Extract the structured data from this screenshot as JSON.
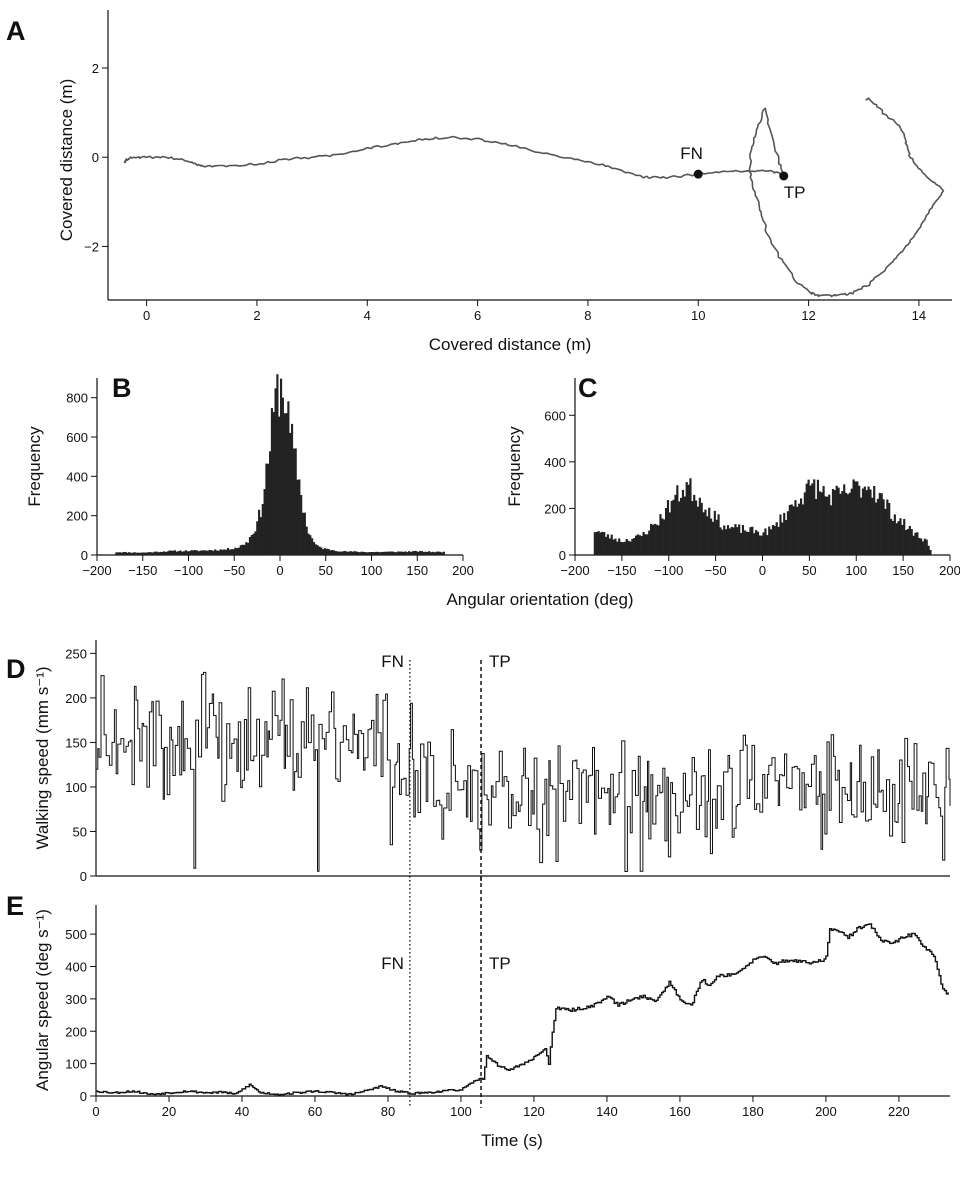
{
  "chart_data": [
    {
      "panel": "A",
      "type": "line",
      "xlabel": "Covered distance (m)",
      "ylabel": "Covered distance (m)",
      "xlim": [
        -0.7,
        14.6
      ],
      "ylim": [
        -3.2,
        3.3
      ],
      "xticks": [
        0,
        2,
        4,
        6,
        8,
        10,
        12,
        14
      ],
      "yticks": [
        -2,
        0,
        2
      ],
      "grid": false,
      "path": {
        "x": [
          -0.4,
          -0.3,
          0.0,
          0.4,
          0.8,
          1.0,
          1.5,
          2.0,
          2.5,
          3.0,
          3.5,
          4.0,
          4.5,
          5.0,
          5.5,
          6.0,
          6.5,
          7.0,
          7.5,
          8.0,
          8.5,
          9.0,
          9.5,
          10.0,
          10.5,
          11.0,
          11.3,
          11.55,
          11.4,
          11.2,
          11.05,
          10.95,
          10.95,
          11.1,
          11.25,
          11.5,
          11.8,
          12.05,
          12.2,
          12.5,
          12.8,
          13.1,
          13.4,
          13.7,
          13.95,
          14.2,
          14.45,
          14.1,
          13.85,
          13.75,
          13.65,
          13.35,
          13.1,
          13.05
        ],
        "y": [
          -0.1,
          0.0,
          0.0,
          0.0,
          -0.1,
          -0.2,
          -0.2,
          -0.15,
          -0.05,
          0.0,
          0.05,
          0.2,
          0.3,
          0.4,
          0.45,
          0.4,
          0.3,
          0.15,
          0.0,
          -0.1,
          -0.25,
          -0.45,
          -0.45,
          -0.38,
          -0.32,
          -0.32,
          -0.3,
          -0.4,
          0.15,
          1.1,
          0.6,
          0.1,
          -0.45,
          -1.1,
          -1.7,
          -2.3,
          -2.8,
          -3.05,
          -3.1,
          -3.1,
          -3.05,
          -2.85,
          -2.5,
          -2.1,
          -1.7,
          -1.2,
          -0.75,
          -0.4,
          0.0,
          0.4,
          0.7,
          1.0,
          1.3,
          1.3
        ]
      },
      "markers": [
        {
          "label": "FN",
          "x": 10.0,
          "y": -0.38
        },
        {
          "label": "TP",
          "x": 11.55,
          "y": -0.42
        }
      ]
    },
    {
      "panel": "B",
      "type": "bar",
      "xlabel": "",
      "ylabel": "Frequency",
      "xlim": [
        -200,
        200
      ],
      "ylim": [
        0,
        900
      ],
      "xticks": [
        -200,
        -150,
        -100,
        -50,
        0,
        50,
        100,
        150,
        200
      ],
      "yticks": [
        0,
        200,
        400,
        600,
        800
      ],
      "profile": {
        "x": [
          -180,
          -150,
          -120,
          -90,
          -60,
          -45,
          -35,
          -25,
          -20,
          -15,
          -10,
          -5,
          0,
          5,
          10,
          15,
          20,
          25,
          30,
          35,
          40,
          50,
          70,
          100,
          150,
          180
        ],
        "y": [
          15,
          12,
          20,
          22,
          28,
          40,
          70,
          160,
          250,
          420,
          600,
          790,
          860,
          820,
          650,
          520,
          400,
          250,
          130,
          80,
          45,
          30,
          18,
          15,
          18,
          15
        ]
      }
    },
    {
      "panel": "C",
      "type": "bar",
      "xlabel": "",
      "ylabel": "Frequency",
      "xlim": [
        -200,
        200
      ],
      "ylim": [
        0,
        760
      ],
      "xticks": [
        -200,
        -150,
        -100,
        -50,
        0,
        50,
        100,
        150,
        200
      ],
      "yticks": [
        0,
        200,
        400,
        600
      ],
      "profile": {
        "x": [
          -180,
          -170,
          -150,
          -130,
          -110,
          -95,
          -80,
          -70,
          -55,
          -40,
          -20,
          0,
          10,
          25,
          40,
          55,
          70,
          85,
          100,
          115,
          125,
          140,
          160,
          175,
          180
        ],
        "y": [
          110,
          90,
          60,
          80,
          150,
          240,
          300,
          250,
          180,
          120,
          110,
          95,
          110,
          180,
          250,
          300,
          250,
          260,
          290,
          300,
          250,
          170,
          100,
          60,
          10
        ]
      }
    },
    {
      "panel": "D",
      "type": "line",
      "xlabel": "",
      "ylabel": "Walking speed (mm s⁻¹)",
      "xlim": [
        0,
        234
      ],
      "ylim": [
        0,
        265
      ],
      "yticks": [
        0,
        50,
        100,
        150,
        200,
        250
      ],
      "annotations": [
        {
          "label": "FN",
          "x": 86
        },
        {
          "label": "TP",
          "x": 105.5
        }
      ],
      "profile": {
        "x": [
          0,
          20,
          40,
          60,
          75,
          86,
          95,
          105,
          120,
          160,
          200,
          234
        ],
        "y": [
          155,
          150,
          150,
          150,
          155,
          130,
          110,
          105,
          100,
          100,
          100,
          100
        ]
      },
      "spread": {
        "x": [
          0,
          86,
          105,
          234
        ],
        "y": [
          85,
          75,
          60,
          70
        ]
      }
    },
    {
      "panel": "E",
      "type": "line",
      "xlabel": "Time (s)",
      "ylabel": "Angular speed (deg s⁻¹)",
      "xlim": [
        0,
        234
      ],
      "ylim": [
        0,
        590
      ],
      "xticks": [
        0,
        20,
        40,
        60,
        80,
        100,
        120,
        140,
        160,
        180,
        200,
        220
      ],
      "yticks": [
        0,
        100,
        200,
        300,
        400,
        500
      ],
      "annotations": [
        {
          "label": "FN",
          "x": 86
        },
        {
          "label": "TP",
          "x": 105.5
        }
      ],
      "series": {
        "x": [
          0,
          5,
          10,
          15,
          20,
          25,
          30,
          35,
          38,
          42,
          45,
          50,
          55,
          60,
          65,
          70,
          75,
          78,
          82,
          86,
          90,
          95,
          100,
          103,
          105,
          106,
          107,
          110,
          113,
          116,
          119,
          121,
          123,
          124,
          125,
          126,
          130,
          135,
          138,
          140,
          143,
          146,
          150,
          153,
          157,
          160,
          163,
          166,
          168,
          170,
          173,
          176,
          180,
          183,
          186,
          190,
          193,
          196,
          199,
          200,
          201,
          203,
          206,
          209,
          212,
          215,
          218,
          221,
          224,
          227,
          229,
          230,
          231,
          232,
          233
        ],
        "y": [
          15,
          10,
          15,
          5,
          10,
          15,
          10,
          12,
          5,
          35,
          10,
          5,
          10,
          15,
          10,
          5,
          20,
          30,
          15,
          8,
          10,
          15,
          20,
          40,
          55,
          50,
          125,
          95,
          80,
          95,
          110,
          130,
          145,
          100,
          200,
          270,
          265,
          275,
          290,
          310,
          280,
          295,
          310,
          290,
          350,
          300,
          280,
          360,
          340,
          370,
          375,
          380,
          420,
          430,
          410,
          420,
          415,
          410,
          420,
          430,
          515,
          510,
          490,
          520,
          530,
          480,
          470,
          490,
          500,
          460,
          440,
          420,
          370,
          330,
          320
        ]
      }
    }
  ],
  "labels": {
    "panel_a": "A",
    "panel_b": "B",
    "panel_c": "C",
    "panel_d": "D",
    "panel_e": "E",
    "shared_xlabel": "Angular orientation (deg)",
    "fn": "FN",
    "tp": "TP"
  },
  "colors": {
    "line": "#555555",
    "bars": "#222222",
    "axes": "#111111"
  }
}
